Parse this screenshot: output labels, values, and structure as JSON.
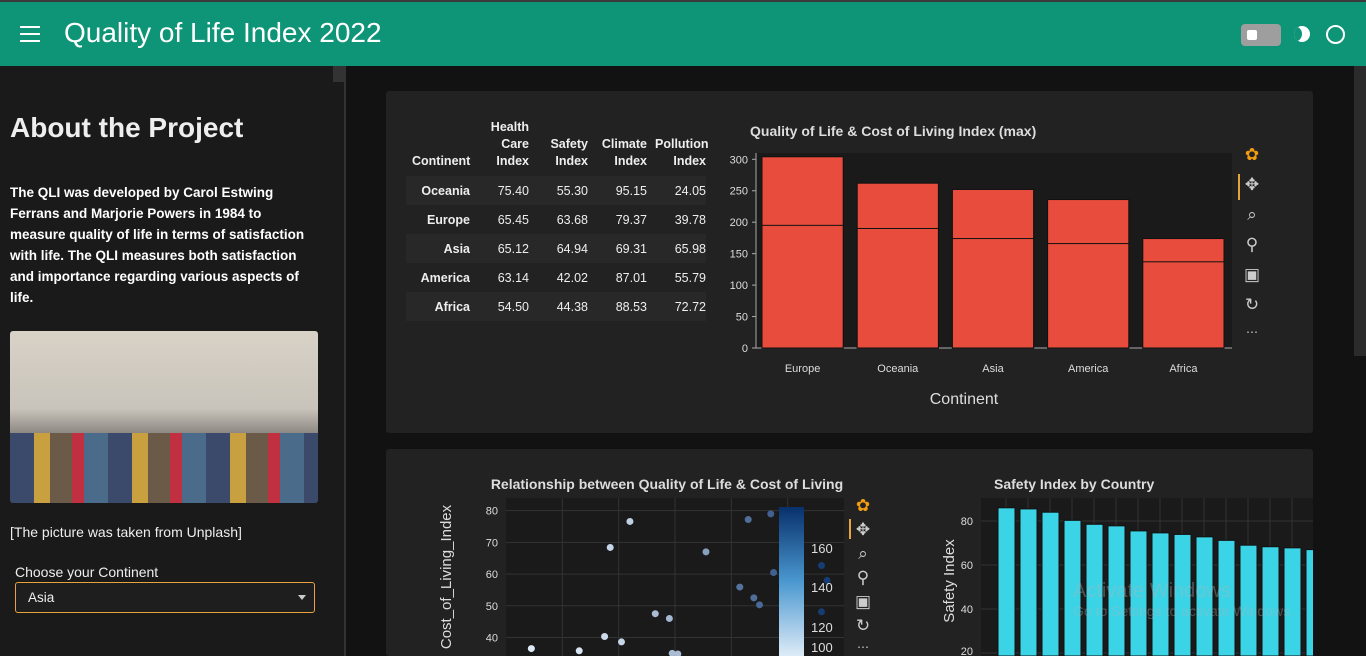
{
  "header": {
    "title": "Quality of Life Index 2022",
    "menu_icon": "hamburger-icon",
    "theme_toggle": "toggle-switch",
    "dark_icon": "moon-icon",
    "light_icon": "circle-icon",
    "color": "#0e9477"
  },
  "sidebar": {
    "heading": "About the Project",
    "description": "The QLI was developed by Carol Estwing Ferrans and Marjorie Powers in 1984 to measure quality of life in terms of satisfaction with life. The QLI measures both satisfaction and importance regarding various aspects of life.",
    "image_credit": "[The picture was taken from Unplash]",
    "select_label": "Choose your Continent",
    "select_value": "Asia"
  },
  "table": {
    "index_header": "Continent",
    "columns": [
      "Health Care Index",
      "Safety Index",
      "Climate Index",
      "Pollution Index"
    ],
    "rows": [
      [
        "Oceania",
        "75.40",
        "55.30",
        "95.15",
        "24.05"
      ],
      [
        "Europe",
        "65.45",
        "63.68",
        "79.37",
        "39.78"
      ],
      [
        "Asia",
        "65.12",
        "64.94",
        "69.31",
        "65.98"
      ],
      [
        "America",
        "63.14",
        "42.02",
        "87.01",
        "55.79"
      ],
      [
        "Africa",
        "54.50",
        "44.38",
        "88.53",
        "72.72"
      ]
    ]
  },
  "chart_data": [
    {
      "type": "bar",
      "title": "Quality of Life & Cost of Living Index (max)",
      "xlabel": "Continent",
      "ylabel": "",
      "categories": [
        "Europe",
        "Oceania",
        "Asia",
        "America",
        "Africa"
      ],
      "series": [
        {
          "values": [
            304,
            262,
            252,
            236,
            174
          ]
        },
        {
          "values": [
            195,
            190,
            174,
            166,
            137
          ]
        }
      ],
      "ylim": [
        0,
        310
      ],
      "yticks": [
        "0",
        "50",
        "100",
        "150",
        "200",
        "250",
        "300"
      ],
      "color": "#e74c3c",
      "grid": false
    },
    {
      "type": "scatter",
      "title": "Relationship between Quality of Life & Cost of Living",
      "ylabel": "Cost_of_Living_Index",
      "xlabel": "",
      "yticks": [
        "40",
        "50",
        "60",
        "70",
        "80"
      ],
      "colorbar_ticks": [
        "100",
        "120",
        "140",
        "160"
      ],
      "grid": true,
      "points": [
        [
          89,
          36.5,
          100
        ],
        [
          106,
          35.8,
          102
        ],
        [
          117,
          68.4,
          108
        ],
        [
          124,
          76.6,
          110
        ],
        [
          115,
          40.3,
          106
        ],
        [
          121,
          38.6,
          108
        ],
        [
          133,
          47.5,
          118
        ],
        [
          138,
          46,
          120
        ],
        [
          139,
          35,
          118
        ],
        [
          141,
          34.8,
          118
        ],
        [
          151,
          67,
          130
        ],
        [
          166,
          77.2,
          150
        ],
        [
          174,
          79,
          155
        ],
        [
          175,
          60.5,
          155
        ],
        [
          163,
          55.9,
          148
        ],
        [
          168,
          52.5,
          150
        ],
        [
          170,
          50.3,
          152
        ],
        [
          192,
          62.7,
          170
        ],
        [
          194,
          58,
          170
        ],
        [
          192,
          48.1,
          170
        ]
      ]
    },
    {
      "type": "bar",
      "title": "Safety Index by Country",
      "ylabel": "Safety Index",
      "yticks": [
        "20",
        "40",
        "60",
        "80"
      ],
      "values": [
        86,
        85.5,
        84,
        80.3,
        78.5,
        77.8,
        75.5,
        74.6,
        73.9,
        72.8,
        71.2,
        69,
        68.3,
        67.8,
        67
      ],
      "color": "#3bd3e6",
      "grid": true
    }
  ],
  "toolbar": {
    "icons": [
      "bokeh-logo-icon",
      "pan-icon",
      "box-zoom-icon",
      "wheel-zoom-icon",
      "save-icon",
      "reset-icon",
      "more-icon"
    ]
  },
  "watermark": {
    "line1": "Activate Windows",
    "line2": "Go to Settings to activate Windows."
  }
}
